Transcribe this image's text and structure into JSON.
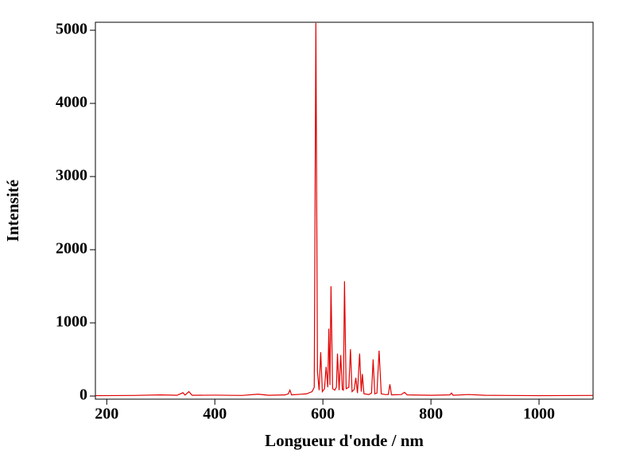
{
  "chart_data": {
    "type": "line",
    "xlabel": "Longueur d'onde / nm",
    "ylabel": "Intensité",
    "x": [
      179,
      250,
      300,
      330,
      341,
      345,
      352,
      358,
      400,
      450,
      480,
      500,
      530,
      536,
      539,
      542,
      570,
      580,
      584,
      587,
      590,
      593,
      596,
      599,
      603,
      606,
      609,
      611,
      613,
      615,
      618,
      622,
      625,
      627,
      630,
      633,
      636,
      638,
      640,
      643,
      648,
      651,
      654,
      658,
      661,
      664,
      668,
      671,
      673,
      676,
      685,
      690,
      693,
      696,
      700,
      704,
      708,
      715,
      721,
      724,
      727,
      745,
      751,
      756,
      800,
      835,
      838,
      841,
      870,
      900,
      1000,
      1100
    ],
    "series": [
      {
        "name": "Intensité",
        "color": "#e00000",
        "values": [
          5,
          8,
          15,
          10,
          45,
          12,
          60,
          10,
          12,
          8,
          25,
          10,
          15,
          30,
          80,
          15,
          30,
          60,
          120,
          5100,
          330,
          80,
          600,
          60,
          100,
          400,
          120,
          920,
          150,
          1500,
          100,
          80,
          120,
          580,
          80,
          560,
          90,
          80,
          1570,
          100,
          120,
          640,
          60,
          90,
          250,
          40,
          580,
          60,
          300,
          30,
          20,
          40,
          500,
          30,
          40,
          620,
          30,
          20,
          20,
          160,
          15,
          20,
          50,
          15,
          10,
          15,
          40,
          10,
          20,
          10,
          5,
          8
        ]
      }
    ],
    "xlim": [
      179,
      1100
    ],
    "ylim": [
      -43,
      5109
    ],
    "xticks": [
      200,
      400,
      600,
      800,
      1000
    ],
    "yticks": [
      0,
      1000,
      2000,
      3000,
      4000,
      5000
    ]
  }
}
